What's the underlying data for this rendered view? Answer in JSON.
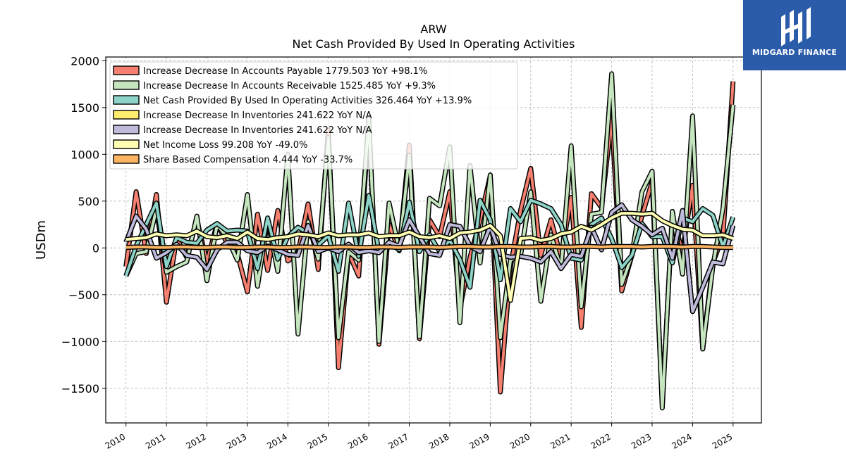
{
  "brand": {
    "name": "MIDGARD FINANCE",
    "color": "#2a5caa"
  },
  "chart_data": {
    "type": "line",
    "title": "ARW",
    "subtitle": "Net Cash Provided By Used In Operating Activities",
    "ylabel": "USDm",
    "xlabel": "",
    "xlim": [
      2009.5,
      2025.7
    ],
    "ylim": [
      -1870,
      2040
    ],
    "yticks": [
      -1500,
      -1000,
      -500,
      0,
      500,
      1000,
      1500,
      2000
    ],
    "ytick_labels": [
      "−1500",
      "−1000",
      "−500",
      "0",
      "500",
      "1000",
      "1500",
      "2000"
    ],
    "xticks": [
      2010,
      2011,
      2012,
      2013,
      2014,
      2015,
      2016,
      2017,
      2018,
      2019,
      2020,
      2021,
      2022,
      2023,
      2024,
      2025
    ],
    "xtick_labels": [
      "2010",
      "2011",
      "2012",
      "2013",
      "2014",
      "2015",
      "2016",
      "2017",
      "2018",
      "2019",
      "2020",
      "2021",
      "2022",
      "2023",
      "2024",
      "2025"
    ],
    "grid": true,
    "legend_position": "top-left",
    "x": [
      2010.0,
      2010.25,
      2010.5,
      2010.75,
      2011.0,
      2011.25,
      2011.5,
      2011.75,
      2012.0,
      2012.25,
      2012.5,
      2012.75,
      2013.0,
      2013.25,
      2013.5,
      2013.75,
      2014.0,
      2014.25,
      2014.5,
      2014.75,
      2015.0,
      2015.25,
      2015.5,
      2015.75,
      2016.0,
      2016.25,
      2016.5,
      2016.75,
      2017.0,
      2017.25,
      2017.5,
      2017.75,
      2018.0,
      2018.25,
      2018.5,
      2018.75,
      2019.0,
      2019.25,
      2019.5,
      2019.75,
      2020.0,
      2020.25,
      2020.5,
      2020.75,
      2021.0,
      2021.25,
      2021.5,
      2021.75,
      2022.0,
      2022.25,
      2022.5,
      2022.75,
      2023.0,
      2023.25,
      2023.5,
      2023.75,
      2024.0,
      2024.25,
      2024.5,
      2024.75,
      2025.0
    ],
    "series": [
      {
        "name": "Increase Decrease In Accounts Payable",
        "legend_label": "Increase Decrease In Accounts Payable  1779.503 YoY +98.1%",
        "color": "#f67f6f",
        "values": [
          -200,
          600,
          -60,
          570,
          -580,
          100,
          -100,
          300,
          -150,
          260,
          50,
          -60,
          -470,
          360,
          -240,
          400,
          -140,
          -50,
          470,
          -230,
          1260,
          -1280,
          -50,
          -300,
          1350,
          -1030,
          250,
          -30,
          1100,
          -970,
          300,
          120,
          600,
          -650,
          -100,
          300,
          770,
          -1540,
          -200,
          400,
          850,
          -80,
          300,
          -100,
          540,
          -850,
          580,
          430,
          1390,
          -460,
          -80,
          340,
          710,
          -1650,
          330,
          -40,
          670,
          -1080,
          -160,
          130,
          1780
        ]
      },
      {
        "name": "Increase Decrease In Accounts Receivable",
        "legend_label": "Increase Decrease In Accounts Receivable  1525.485 YoY +9.3%",
        "color": "#c4e5be",
        "values": [
          -300,
          -60,
          -40,
          410,
          -260,
          -200,
          -150,
          340,
          -350,
          250,
          110,
          -130,
          570,
          -410,
          300,
          -250,
          1000,
          -920,
          280,
          -120,
          1180,
          -960,
          -40,
          -130,
          1380,
          -1000,
          480,
          -20,
          990,
          -950,
          530,
          450,
          1080,
          -800,
          880,
          -160,
          780,
          -960,
          -130,
          -80,
          600,
          -570,
          140,
          -220,
          1090,
          -630,
          360,
          380,
          1860,
          -390,
          -80,
          600,
          820,
          -1710,
          390,
          -280,
          1410,
          -1080,
          -200,
          420,
          1530
        ]
      },
      {
        "name": "Net Cash Provided By Used In Operating Activities",
        "legend_label": "Net Cash Provided By Used In Operating Activities  326.464 YoY +13.9%",
        "color": "#8dd3c7",
        "values": [
          -300,
          20,
          250,
          480,
          -200,
          110,
          60,
          50,
          190,
          260,
          180,
          190,
          180,
          -220,
          320,
          -120,
          120,
          220,
          160,
          30,
          130,
          -250,
          480,
          -90,
          560,
          -40,
          50,
          -20,
          490,
          -40,
          140,
          -40,
          80,
          -120,
          -420,
          510,
          300,
          -340,
          420,
          280,
          510,
          470,
          420,
          250,
          -110,
          -130,
          250,
          320,
          100,
          -210,
          -80,
          260,
          120,
          120,
          -160,
          320,
          280,
          420,
          350,
          10,
          330
        ]
      },
      {
        "name": "Increase Decrease In Inventories",
        "legend_label": "Increase Decrease In Inventories  241.622 YoY N/A",
        "color": "#ffed6f",
        "values": [
          60,
          340,
          200,
          -110,
          -50,
          40,
          -80,
          -100,
          -230,
          -20,
          60,
          60,
          -30,
          -50,
          20,
          -20,
          -70,
          -80,
          240,
          -40,
          0,
          -40,
          40,
          -50,
          -30,
          -50,
          60,
          20,
          300,
          120,
          -60,
          -80,
          250,
          230,
          20,
          -40,
          230,
          -70,
          -100,
          -90,
          -110,
          -150,
          -40,
          -220,
          -70,
          -90,
          220,
          -20,
          380,
          460,
          300,
          230,
          140,
          210,
          -110,
          400,
          -680,
          -420,
          -150,
          -170,
          240
        ]
      },
      {
        "name": "Increase Decrease In Inventories",
        "legend_label": "Increase Decrease In Inventories  241.622 YoY N/A",
        "color": "#bebada",
        "values": [
          60,
          340,
          200,
          -110,
          -50,
          40,
          -80,
          -100,
          -230,
          -20,
          60,
          60,
          -30,
          -50,
          20,
          -20,
          -70,
          -80,
          240,
          -40,
          0,
          -40,
          40,
          -50,
          -30,
          -50,
          60,
          20,
          300,
          120,
          -60,
          -80,
          250,
          230,
          20,
          -40,
          230,
          -70,
          -100,
          -90,
          -110,
          -150,
          -40,
          -220,
          -70,
          -90,
          220,
          -20,
          380,
          460,
          300,
          230,
          140,
          210,
          -110,
          400,
          -680,
          -420,
          -150,
          -170,
          240
        ]
      },
      {
        "name": "Net Income Loss",
        "legend_label": "Net Income Loss  99.208 YoY -49.0%",
        "color": "#ffffb3",
        "values": [
          90,
          100,
          110,
          150,
          130,
          140,
          130,
          180,
          120,
          110,
          130,
          100,
          170,
          100,
          90,
          110,
          120,
          150,
          140,
          120,
          160,
          130,
          140,
          140,
          160,
          120,
          130,
          130,
          170,
          120,
          110,
          130,
          100,
          160,
          170,
          190,
          240,
          130,
          -560,
          100,
          110,
          80,
          100,
          150,
          170,
          230,
          190,
          250,
          320,
          370,
          370,
          360,
          370,
          290,
          240,
          200,
          190,
          130,
          130,
          140,
          100
        ]
      },
      {
        "name": "Share Based Compensation",
        "legend_label": "Share Based Compensation  4.444 YoY -33.7%",
        "color": "#fdb462",
        "values": [
          5,
          10,
          10,
          5,
          5,
          10,
          10,
          5,
          5,
          10,
          10,
          5,
          5,
          10,
          10,
          5,
          5,
          10,
          10,
          5,
          5,
          10,
          10,
          5,
          5,
          10,
          10,
          5,
          10,
          10,
          10,
          5,
          10,
          15,
          15,
          10,
          10,
          15,
          15,
          10,
          10,
          15,
          15,
          10,
          10,
          15,
          15,
          10,
          15,
          15,
          15,
          10,
          15,
          15,
          15,
          10,
          15,
          15,
          10,
          5,
          4
        ]
      }
    ]
  }
}
